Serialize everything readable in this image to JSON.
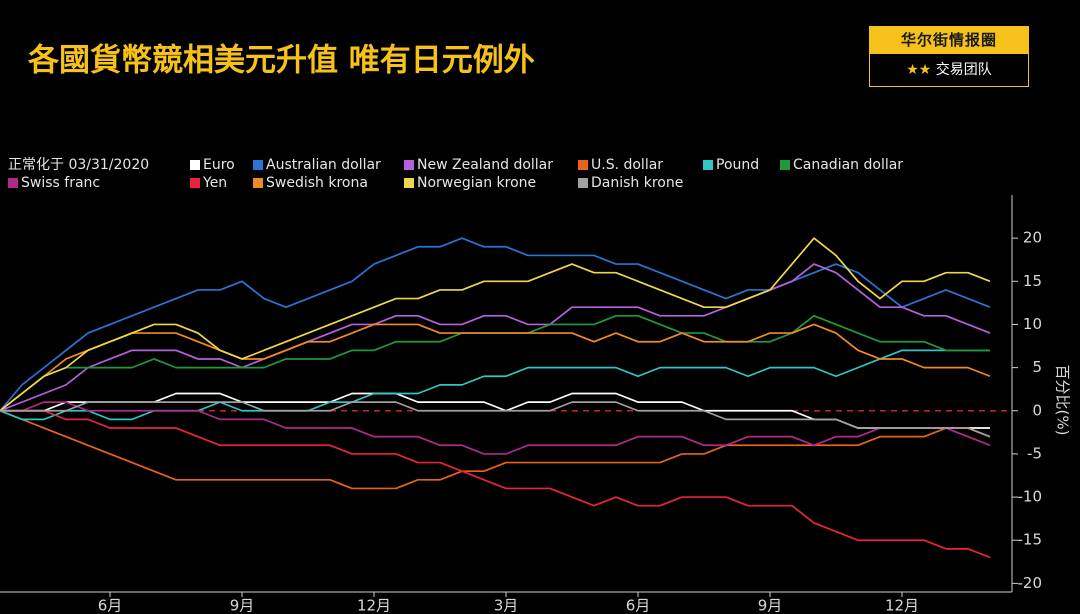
{
  "logo": {
    "title": "华尔街情报圈",
    "subtitle": "交易团队"
  },
  "chart_data": {
    "type": "line",
    "title": "各國貨幣競相美元升值 唯有日元例外",
    "legend_title": "正常化于 03/31/2020",
    "y_label": "百分比(%)",
    "categories": [
      null,
      null,
      null,
      null,
      null,
      "6月",
      null,
      null,
      null,
      null,
      null,
      "9月",
      null,
      null,
      null,
      null,
      null,
      "12月",
      null,
      null,
      null,
      null,
      null,
      "3月",
      null,
      null,
      null,
      null,
      null,
      "6月",
      null,
      null,
      null,
      null,
      null,
      "9月",
      null,
      null,
      null,
      null,
      null,
      "12月",
      null,
      null,
      null,
      null
    ],
    "ylim": [
      -21,
      25
    ],
    "yticks": [
      -20,
      -15,
      -10,
      -5,
      0,
      5,
      10,
      15,
      20
    ],
    "y_axis_side": "right",
    "reference_line": {
      "value": 0,
      "color": "#c0282d"
    },
    "series": [
      {
        "name": "Euro",
        "color": "#ffffff",
        "values": [
          0,
          0,
          0,
          1,
          1,
          1,
          1,
          1,
          2,
          2,
          2,
          1,
          1,
          1,
          1,
          1,
          2,
          2,
          2,
          1,
          1,
          1,
          1,
          0,
          1,
          1,
          2,
          2,
          2,
          1,
          1,
          1,
          0,
          0,
          0,
          0,
          0,
          -1,
          -1,
          -2,
          -2,
          -2,
          -2,
          -2,
          -2,
          -2
        ]
      },
      {
        "name": "Australian dollar",
        "color": "#2a74d6",
        "values": [
          0,
          3,
          5,
          7,
          9,
          10,
          11,
          12,
          13,
          14,
          14,
          15,
          13,
          12,
          13,
          14,
          15,
          17,
          18,
          19,
          19,
          20,
          19,
          19,
          18,
          18,
          18,
          18,
          17,
          17,
          16,
          15,
          14,
          13,
          14,
          14,
          15,
          16,
          17,
          16,
          14,
          12,
          13,
          14,
          13,
          12
        ]
      },
      {
        "name": "New Zealand dollar",
        "color": "#b660e0",
        "values": [
          0,
          1,
          2,
          3,
          5,
          6,
          7,
          7,
          7,
          6,
          6,
          5,
          6,
          7,
          8,
          9,
          10,
          10,
          11,
          11,
          10,
          10,
          11,
          11,
          10,
          10,
          12,
          12,
          12,
          12,
          11,
          11,
          11,
          12,
          13,
          14,
          15,
          17,
          16,
          14,
          12,
          12,
          11,
          11,
          10,
          9
        ]
      },
      {
        "name": "U.S. dollar",
        "color": "#e8621e",
        "values": [
          0,
          -1,
          -2,
          -3,
          -4,
          -5,
          -6,
          -7,
          -8,
          -8,
          -8,
          -8,
          -8,
          -8,
          -8,
          -8,
          -9,
          -9,
          -9,
          -8,
          -8,
          -7,
          -7,
          -6,
          -6,
          -6,
          -6,
          -6,
          -6,
          -6,
          -6,
          -5,
          -5,
          -4,
          -4,
          -4,
          -4,
          -4,
          -4,
          -4,
          -3,
          -3,
          -3,
          -2,
          -2,
          -3
        ]
      },
      {
        "name": "Pound",
        "color": "#2ec6c6",
        "values": [
          0,
          -1,
          -1,
          0,
          0,
          -1,
          -1,
          0,
          0,
          0,
          1,
          0,
          0,
          0,
          0,
          1,
          1,
          2,
          2,
          2,
          3,
          3,
          4,
          4,
          5,
          5,
          5,
          5,
          5,
          4,
          5,
          5,
          5,
          5,
          4,
          5,
          5,
          5,
          4,
          5,
          6,
          7,
          7,
          7,
          7,
          7
        ]
      },
      {
        "name": "Canadian dollar",
        "color": "#1f9a3a",
        "values": [
          0,
          2,
          4,
          5,
          5,
          5,
          5,
          6,
          5,
          5,
          5,
          5,
          5,
          6,
          6,
          6,
          7,
          7,
          8,
          8,
          8,
          9,
          9,
          9,
          9,
          10,
          10,
          10,
          11,
          11,
          10,
          9,
          9,
          8,
          8,
          8,
          9,
          11,
          10,
          9,
          8,
          8,
          8,
          7,
          7,
          7
        ]
      },
      {
        "name": "Swiss franc",
        "color": "#b02a8a",
        "values": [
          0,
          0,
          1,
          1,
          0,
          0,
          0,
          0,
          0,
          0,
          -1,
          -1,
          -1,
          -2,
          -2,
          -2,
          -2,
          -3,
          -3,
          -3,
          -4,
          -4,
          -5,
          -5,
          -4,
          -4,
          -4,
          -4,
          -4,
          -3,
          -3,
          -3,
          -4,
          -4,
          -3,
          -3,
          -3,
          -4,
          -3,
          -3,
          -2,
          -2,
          -2,
          -2,
          -3,
          -4
        ]
      },
      {
        "name": "Yen",
        "color": "#e8243c",
        "values": [
          0,
          0,
          0,
          -1,
          -1,
          -2,
          -2,
          -2,
          -2,
          -3,
          -4,
          -4,
          -4,
          -4,
          -4,
          -4,
          -5,
          -5,
          -5,
          -6,
          -6,
          -7,
          -8,
          -9,
          -9,
          -9,
          -10,
          -11,
          -10,
          -11,
          -11,
          -10,
          -10,
          -10,
          -11,
          -11,
          -11,
          -13,
          -14,
          -15,
          -15,
          -15,
          -15,
          -16,
          -16,
          -17
        ]
      },
      {
        "name": "Swedish krona",
        "color": "#f08a24",
        "values": [
          0,
          2,
          4,
          6,
          7,
          8,
          9,
          9,
          9,
          8,
          7,
          6,
          6,
          7,
          8,
          8,
          9,
          10,
          10,
          10,
          9,
          9,
          9,
          9,
          9,
          9,
          9,
          8,
          9,
          8,
          8,
          9,
          8,
          8,
          8,
          9,
          9,
          10,
          9,
          7,
          6,
          6,
          5,
          5,
          5,
          4
        ]
      },
      {
        "name": "Norwegian krone",
        "color": "#f0d64a",
        "values": [
          0,
          2,
          4,
          5,
          7,
          8,
          9,
          10,
          10,
          9,
          7,
          6,
          7,
          8,
          9,
          10,
          11,
          12,
          13,
          13,
          14,
          14,
          15,
          15,
          15,
          16,
          17,
          16,
          16,
          15,
          14,
          13,
          12,
          12,
          13,
          14,
          17,
          20,
          18,
          15,
          13,
          15,
          15,
          16,
          16,
          15
        ]
      },
      {
        "name": "Danish krone",
        "color": "#a0a0a0",
        "values": [
          0,
          0,
          0,
          0,
          1,
          1,
          1,
          1,
          1,
          1,
          1,
          1,
          0,
          0,
          0,
          0,
          1,
          1,
          1,
          0,
          0,
          0,
          0,
          0,
          0,
          0,
          1,
          1,
          1,
          0,
          0,
          0,
          0,
          -1,
          -1,
          -1,
          -1,
          -1,
          -1,
          -2,
          -2,
          -2,
          -2,
          -2,
          -2,
          -3
        ]
      }
    ]
  }
}
